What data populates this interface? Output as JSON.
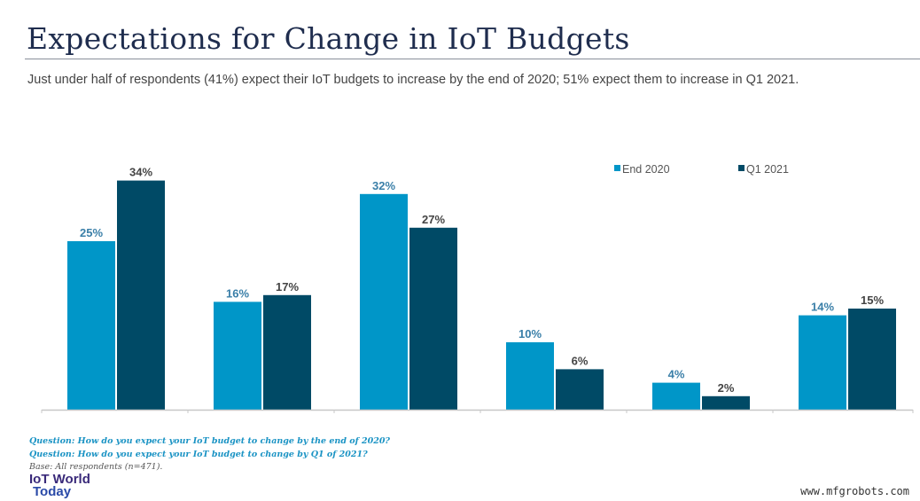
{
  "title": "Expectations for Change in IoT Budgets",
  "subtitle": "Just under half of respondents (41%) expect their IoT budgets to increase by the end of 2020; 51% expect them to increase in Q1 2021.",
  "chart_data": {
    "type": "bar",
    "categories": [
      "",
      "",
      "",
      "",
      "",
      ""
    ],
    "series": [
      {
        "name": "End 2020",
        "color": "#0096c8",
        "values": [
          25,
          16,
          32,
          10,
          4,
          14
        ]
      },
      {
        "name": "Q1 2021",
        "color": "#004a66",
        "values": [
          34,
          17,
          27,
          6,
          2,
          15
        ]
      }
    ],
    "value_suffix": "%",
    "ylim": [
      0,
      36
    ],
    "grid": false,
    "legend": "top-right"
  },
  "footer": {
    "question1": "Question: How do you expect your IoT budget to change by the end of 2020?",
    "question2": "Question: How do you expect your IoT budget to change by Q1 of 2021?",
    "base": "Base: All respondents (n=471).",
    "logo_line1": "IoT World",
    "logo_line2": "Today",
    "watermark": "www.mfgrobots.com"
  }
}
